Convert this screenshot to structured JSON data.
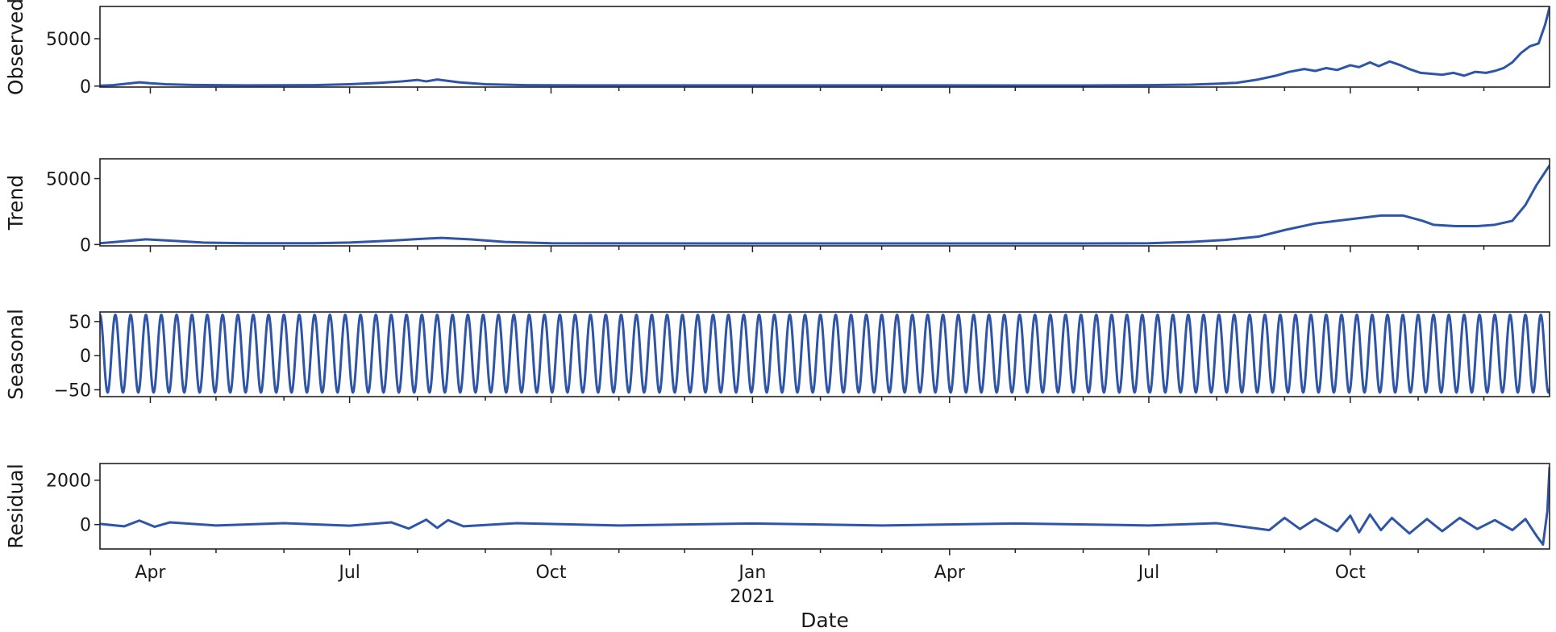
{
  "chart_data": {
    "type": "line",
    "title": "",
    "xlabel": "Date",
    "xrange": [
      "2020-03-09",
      "2021-12-31"
    ],
    "grid": false,
    "legend": "none",
    "line_color": "#2e55a8",
    "x_ticks": [
      {
        "date": "2020-04-01",
        "label": "Apr",
        "major": true
      },
      {
        "date": "2020-05-01",
        "label": "",
        "major": false
      },
      {
        "date": "2020-06-01",
        "label": "",
        "major": false
      },
      {
        "date": "2020-07-01",
        "label": "Jul",
        "major": true
      },
      {
        "date": "2020-08-01",
        "label": "",
        "major": false
      },
      {
        "date": "2020-09-01",
        "label": "",
        "major": false
      },
      {
        "date": "2020-10-01",
        "label": "Oct",
        "major": true
      },
      {
        "date": "2020-11-01",
        "label": "",
        "major": false
      },
      {
        "date": "2020-12-01",
        "label": "",
        "major": false
      },
      {
        "date": "2021-01-01",
        "label": "Jan",
        "major": true
      },
      {
        "date": "2021-02-01",
        "label": "",
        "major": false
      },
      {
        "date": "2021-03-01",
        "label": "",
        "major": false
      },
      {
        "date": "2021-04-01",
        "label": "Apr",
        "major": true
      },
      {
        "date": "2021-05-01",
        "label": "",
        "major": false
      },
      {
        "date": "2021-06-01",
        "label": "",
        "major": false
      },
      {
        "date": "2021-07-01",
        "label": "Jul",
        "major": true
      },
      {
        "date": "2021-08-01",
        "label": "",
        "major": false
      },
      {
        "date": "2021-09-01",
        "label": "",
        "major": false
      },
      {
        "date": "2021-10-01",
        "label": "Oct",
        "major": true
      },
      {
        "date": "2021-11-01",
        "label": "",
        "major": false
      },
      {
        "date": "2021-12-01",
        "label": "",
        "major": false
      }
    ],
    "year_label": {
      "date": "2021-01-01",
      "label": "2021"
    },
    "panels": [
      {
        "name": "Observed",
        "ylabel": "Observed",
        "ylim": [
          -100,
          8400
        ],
        "yticks": [
          0,
          5000
        ],
        "data": [
          [
            "2020-03-09",
            50
          ],
          [
            "2020-03-15",
            100
          ],
          [
            "2020-03-21",
            250
          ],
          [
            "2020-03-27",
            400
          ],
          [
            "2020-04-01",
            300
          ],
          [
            "2020-04-08",
            200
          ],
          [
            "2020-04-20",
            120
          ],
          [
            "2020-05-15",
            80
          ],
          [
            "2020-06-15",
            100
          ],
          [
            "2020-07-01",
            200
          ],
          [
            "2020-07-15",
            350
          ],
          [
            "2020-07-25",
            500
          ],
          [
            "2020-08-01",
            650
          ],
          [
            "2020-08-05",
            500
          ],
          [
            "2020-08-10",
            700
          ],
          [
            "2020-08-20",
            400
          ],
          [
            "2020-09-01",
            200
          ],
          [
            "2020-09-20",
            100
          ],
          [
            "2020-10-15",
            80
          ],
          [
            "2021-01-01",
            80
          ],
          [
            "2021-04-01",
            80
          ],
          [
            "2021-06-01",
            70
          ],
          [
            "2021-07-01",
            100
          ],
          [
            "2021-07-20",
            150
          ],
          [
            "2021-08-01",
            250
          ],
          [
            "2021-08-10",
            350
          ],
          [
            "2021-08-20",
            700
          ],
          [
            "2021-08-28",
            1100
          ],
          [
            "2021-09-03",
            1500
          ],
          [
            "2021-09-10",
            1800
          ],
          [
            "2021-09-15",
            1600
          ],
          [
            "2021-09-20",
            1900
          ],
          [
            "2021-09-25",
            1700
          ],
          [
            "2021-10-01",
            2200
          ],
          [
            "2021-10-05",
            2000
          ],
          [
            "2021-10-10",
            2500
          ],
          [
            "2021-10-14",
            2100
          ],
          [
            "2021-10-19",
            2600
          ],
          [
            "2021-10-24",
            2200
          ],
          [
            "2021-10-28",
            1800
          ],
          [
            "2021-11-02",
            1400
          ],
          [
            "2021-11-07",
            1300
          ],
          [
            "2021-11-12",
            1200
          ],
          [
            "2021-11-17",
            1400
          ],
          [
            "2021-11-22",
            1100
          ],
          [
            "2021-11-27",
            1500
          ],
          [
            "2021-12-02",
            1400
          ],
          [
            "2021-12-06",
            1600
          ],
          [
            "2021-12-10",
            1900
          ],
          [
            "2021-12-14",
            2500
          ],
          [
            "2021-12-18",
            3500
          ],
          [
            "2021-12-22",
            4200
          ],
          [
            "2021-12-26",
            4500
          ],
          [
            "2021-12-29",
            6500
          ],
          [
            "2021-12-31",
            8300
          ]
        ]
      },
      {
        "name": "Trend",
        "ylabel": "Trend",
        "ylim": [
          -100,
          6500
        ],
        "yticks": [
          0,
          5000
        ],
        "data": [
          [
            "2020-03-09",
            100
          ],
          [
            "2020-03-20",
            250
          ],
          [
            "2020-03-30",
            400
          ],
          [
            "2020-04-10",
            300
          ],
          [
            "2020-04-25",
            150
          ],
          [
            "2020-05-15",
            100
          ],
          [
            "2020-06-15",
            100
          ],
          [
            "2020-07-01",
            150
          ],
          [
            "2020-07-20",
            300
          ],
          [
            "2020-08-05",
            450
          ],
          [
            "2020-08-12",
            500
          ],
          [
            "2020-08-25",
            400
          ],
          [
            "2020-09-10",
            200
          ],
          [
            "2020-10-01",
            100
          ],
          [
            "2021-01-01",
            80
          ],
          [
            "2021-04-01",
            80
          ],
          [
            "2021-06-01",
            80
          ],
          [
            "2021-07-01",
            100
          ],
          [
            "2021-07-20",
            200
          ],
          [
            "2021-08-05",
            350
          ],
          [
            "2021-08-20",
            600
          ],
          [
            "2021-09-01",
            1100
          ],
          [
            "2021-09-15",
            1600
          ],
          [
            "2021-09-25",
            1800
          ],
          [
            "2021-10-05",
            2000
          ],
          [
            "2021-10-15",
            2200
          ],
          [
            "2021-10-25",
            2200
          ],
          [
            "2021-11-03",
            1800
          ],
          [
            "2021-11-08",
            1500
          ],
          [
            "2021-11-18",
            1400
          ],
          [
            "2021-11-28",
            1400
          ],
          [
            "2021-12-06",
            1500
          ],
          [
            "2021-12-14",
            1800
          ],
          [
            "2021-12-20",
            3000
          ],
          [
            "2021-12-25",
            4500
          ],
          [
            "2021-12-29",
            5500
          ],
          [
            "2021-12-31",
            6000
          ]
        ]
      },
      {
        "name": "Seasonal",
        "ylabel": "Seasonal",
        "ylim": [
          -60,
          64
        ],
        "yticks": [
          -50,
          0,
          50
        ],
        "seasonal": {
          "amplitude": 57,
          "offset": 3,
          "period_days": 7,
          "start": "2020-03-09",
          "end": "2021-12-31"
        }
      },
      {
        "name": "Residual",
        "ylabel": "Residual",
        "ylim": [
          -1100,
          2750
        ],
        "yticks": [
          0,
          2000
        ],
        "data": [
          [
            "2020-03-09",
            30
          ],
          [
            "2020-03-20",
            -80
          ],
          [
            "2020-03-27",
            180
          ],
          [
            "2020-04-03",
            -100
          ],
          [
            "2020-04-10",
            100
          ],
          [
            "2020-05-01",
            -40
          ],
          [
            "2020-06-01",
            60
          ],
          [
            "2020-07-01",
            -50
          ],
          [
            "2020-07-20",
            100
          ],
          [
            "2020-07-28",
            -180
          ],
          [
            "2020-08-05",
            220
          ],
          [
            "2020-08-10",
            -150
          ],
          [
            "2020-08-15",
            200
          ],
          [
            "2020-08-22",
            -80
          ],
          [
            "2020-09-15",
            60
          ],
          [
            "2020-11-01",
            -40
          ],
          [
            "2021-01-01",
            50
          ],
          [
            "2021-03-01",
            -40
          ],
          [
            "2021-05-01",
            50
          ],
          [
            "2021-07-01",
            -40
          ],
          [
            "2021-08-01",
            60
          ],
          [
            "2021-08-25",
            -250
          ],
          [
            "2021-09-01",
            300
          ],
          [
            "2021-09-08",
            -200
          ],
          [
            "2021-09-15",
            250
          ],
          [
            "2021-09-25",
            -300
          ],
          [
            "2021-10-01",
            400
          ],
          [
            "2021-10-05",
            -350
          ],
          [
            "2021-10-10",
            450
          ],
          [
            "2021-10-15",
            -250
          ],
          [
            "2021-10-20",
            300
          ],
          [
            "2021-10-28",
            -400
          ],
          [
            "2021-11-05",
            250
          ],
          [
            "2021-11-12",
            -300
          ],
          [
            "2021-11-20",
            300
          ],
          [
            "2021-11-28",
            -200
          ],
          [
            "2021-12-06",
            200
          ],
          [
            "2021-12-14",
            -250
          ],
          [
            "2021-12-20",
            250
          ],
          [
            "2021-12-25",
            -500
          ],
          [
            "2021-12-28",
            -900
          ],
          [
            "2021-12-30",
            600
          ],
          [
            "2021-12-31",
            2600
          ]
        ]
      }
    ]
  }
}
